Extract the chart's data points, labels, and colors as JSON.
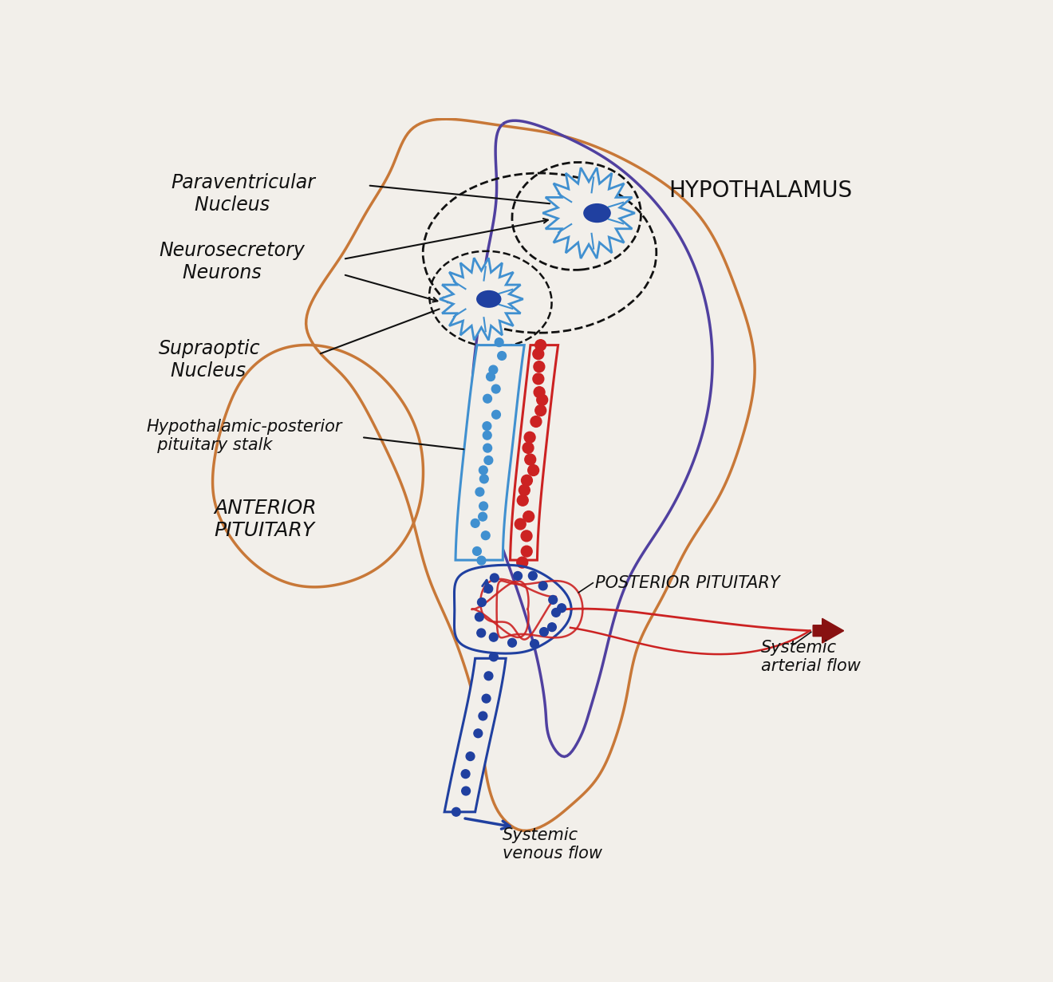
{
  "bg_color": "#f2efea",
  "colors": {
    "orange": "#c87838",
    "purple": "#5040a0",
    "blue": "#4090d0",
    "dark_blue": "#2040a0",
    "red": "#cc2222",
    "dark_red": "#881111",
    "black": "#111111",
    "white": "#ffffff"
  },
  "labels": {
    "paraventricular": "Paraventricular\n    Nucleus",
    "neurosecretory": "Neurosecretory\n    Neurons",
    "supraoptic": "Supraoptic\n  Nucleus",
    "hypothalamus": "HYPOTHALAMUS",
    "stalk": "Hypothalamic-posterior\npituitary stalk",
    "anterior": "ANTERIOR\nPITUITARY",
    "posterior": "POSTERIOR PITUITARY",
    "systemic_arterial": "Systemic\narterial flow",
    "systemic_venous": "Systemic\nvenous flow"
  }
}
